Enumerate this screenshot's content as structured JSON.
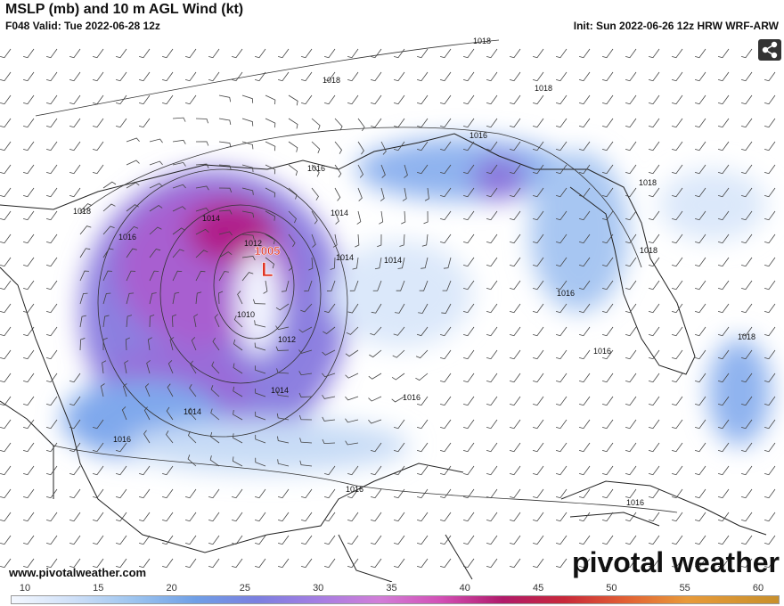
{
  "header": {
    "title": "MSLP (mb) and 10 m AGL Wind (kt)",
    "valid": "F048 Valid: Tue 2022-06-28 12z",
    "init": "Init: Sun 2022-06-26 12z HRW WRF-ARW"
  },
  "map": {
    "isobar_labels": [
      "1018",
      "1018",
      "1018",
      "1016",
      "1016",
      "1018",
      "1014",
      "1014",
      "1016",
      "1012",
      "1014",
      "1014",
      "1018",
      "1018",
      "1016",
      "1010",
      "1012",
      "1016",
      "1018",
      "1014",
      "1016",
      "1014",
      "1016",
      "1016",
      "1016"
    ],
    "low": {
      "pressure": "1005",
      "symbol": "L"
    }
  },
  "footer": {
    "website": "www.pivotalweather.com",
    "logo": "pivotal weather"
  },
  "colorbar": {
    "ticks": [
      10,
      15,
      20,
      25,
      30,
      35,
      40,
      45,
      50,
      55,
      60
    ]
  }
}
